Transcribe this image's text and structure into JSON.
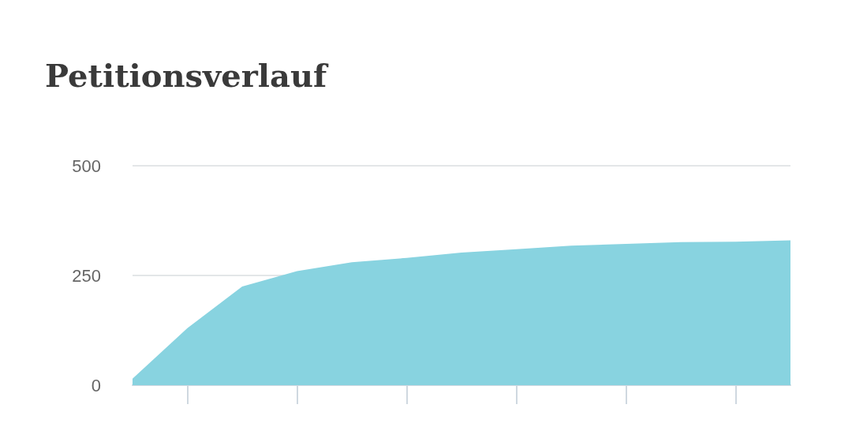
{
  "chart_data": {
    "type": "area",
    "title": "Petitionsverlauf",
    "categories": [
      null,
      null,
      null,
      null,
      null,
      null,
      null,
      null,
      null,
      null,
      null,
      null,
      null
    ],
    "series": [
      {
        "color": "#88d3e0",
        "values": [
          15,
          130,
          225,
          260,
          280,
          290,
          302,
          310,
          318,
          322,
          326,
          327,
          330
        ]
      }
    ],
    "ylim": [
      0,
      500
    ],
    "yticks": [
      0,
      250,
      500
    ],
    "grid": "y",
    "tick_labels": "y"
  }
}
